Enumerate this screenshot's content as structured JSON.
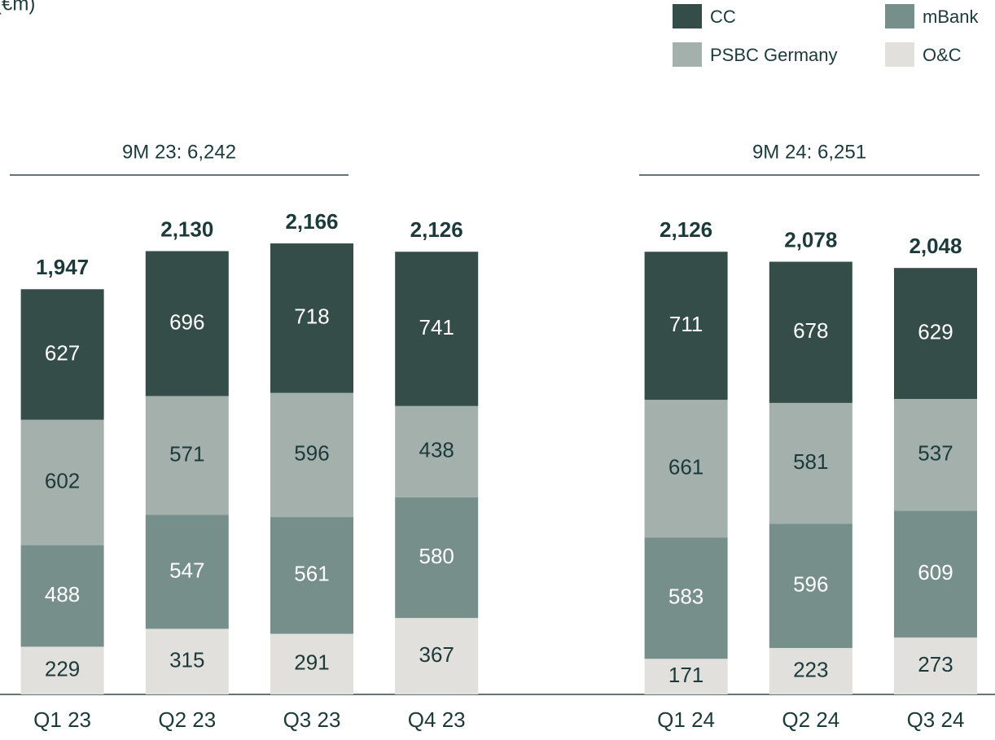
{
  "chart_data": {
    "type": "stacked_bar",
    "unit_label": "(€m)",
    "categories": [
      "Q1 23",
      "Q2 23",
      "Q3 23",
      "Q4 23",
      null,
      "Q1 24",
      "Q2 24",
      "Q3 24"
    ],
    "series": [
      {
        "name": "O&C",
        "color": "#e1e0dc",
        "values": [
          229,
          315,
          291,
          367,
          null,
          171,
          223,
          273
        ]
      },
      {
        "name": "mBank",
        "color": "#778f8a",
        "values": [
          488,
          547,
          561,
          580,
          null,
          583,
          596,
          609
        ]
      },
      {
        "name": "PSBC Germany",
        "color": "#a3b0ac",
        "values": [
          602,
          571,
          596,
          438,
          null,
          661,
          581,
          537
        ]
      },
      {
        "name": "CC",
        "color": "#344d48",
        "values": [
          627,
          696,
          718,
          741,
          null,
          711,
          678,
          629
        ]
      }
    ],
    "totals": {
      "values": [
        1947,
        2130,
        2166,
        2126,
        null,
        2126,
        2078,
        2048
      ],
      "value_labels": [
        "1,947",
        "2,130",
        "2,166",
        "2,126",
        null,
        "2,126",
        "2,078",
        "2,048"
      ]
    },
    "groups": [
      {
        "label": "9M 23: 6,242"
      },
      {
        "label": "9M 24: 6,251"
      }
    ],
    "ylim": [
      0,
      3335
    ]
  }
}
